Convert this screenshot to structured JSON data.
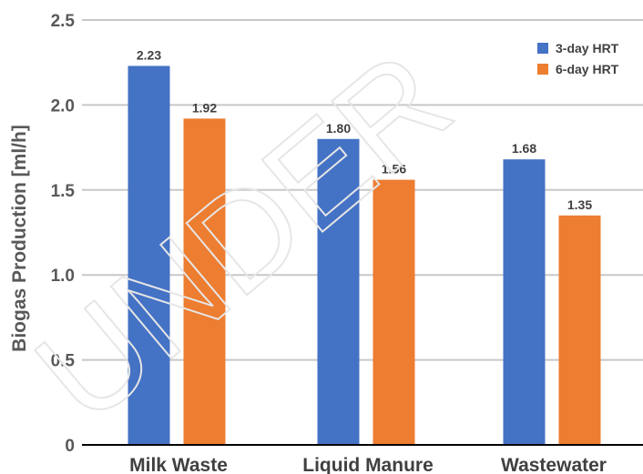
{
  "watermark": "UNDER",
  "chart_data": {
    "type": "bar",
    "title": "",
    "xlabel": "",
    "ylabel": "Biogas Production [ml/h]",
    "ylim": [
      0,
      2.5
    ],
    "yticks": [
      0,
      0.5,
      1.0,
      1.5,
      2.0,
      2.5
    ],
    "ytick_labels": [
      "0",
      "0.5",
      "1.0",
      "1.5",
      "2.0",
      "2.5"
    ],
    "grid": true,
    "legend_position": "top-right",
    "categories": [
      "Milk Waste",
      "Liquid Manure",
      "Wastewater"
    ],
    "series": [
      {
        "name": "3-day HRT",
        "color": "#4472c4",
        "values": [
          2.23,
          1.8,
          1.68
        ],
        "labels": [
          "2.23",
          "1.80",
          "1.68"
        ]
      },
      {
        "name": "6-day HRT",
        "color": "#ed7d31",
        "values": [
          1.92,
          1.56,
          1.35
        ],
        "labels": [
          "1.92",
          "1.56",
          "1.35"
        ]
      }
    ]
  }
}
